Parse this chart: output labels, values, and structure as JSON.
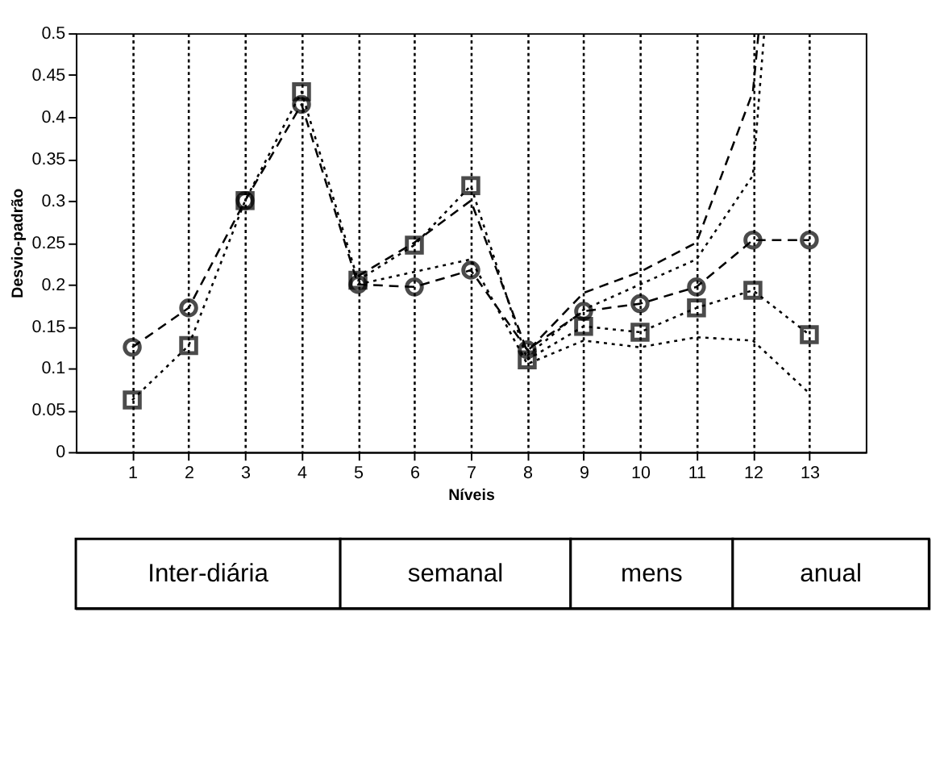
{
  "chart_data": {
    "type": "line",
    "xlabel": "Níveis",
    "ylabel": "Desvio-padrão",
    "xlim": [
      0,
      14
    ],
    "xticks": [
      1,
      2,
      3,
      4,
      5,
      6,
      7,
      8,
      9,
      10,
      11,
      12,
      13
    ],
    "ylim": [
      0,
      0.5
    ],
    "yticks": [
      0,
      0.05,
      0.1,
      0.15,
      0.2,
      0.25,
      0.3,
      0.35,
      0.4,
      0.45,
      0.5
    ],
    "grid": "x",
    "series": [
      {
        "color": "#000000",
        "marker": "circle",
        "line_style": "dashed",
        "x": [
          1,
          2,
          3,
          4,
          5,
          6,
          7,
          8,
          9,
          10,
          11,
          12,
          13
        ],
        "values": [
          0.125,
          0.172,
          0.3,
          0.415,
          0.2,
          0.197,
          0.217,
          0.122,
          0.168,
          0.177,
          0.197,
          0.253,
          0.253
        ]
      },
      {
        "color": "#000000",
        "marker": "square",
        "line_style": "dotted",
        "x": [
          1,
          2,
          3,
          4,
          5,
          6,
          7,
          8,
          9,
          10,
          11,
          12,
          13
        ],
        "values": [
          0.062,
          0.127,
          0.3,
          0.43,
          0.205,
          0.247,
          0.318,
          0.11,
          0.15,
          0.143,
          0.172,
          0.193,
          0.14
        ]
      },
      {
        "color": "#000000",
        "marker": "none",
        "line_style": "dashed",
        "x": [
          5,
          6,
          7,
          8,
          9,
          10,
          11,
          12,
          12.1
        ],
        "values": [
          0.21,
          0.25,
          0.3,
          0.12,
          0.19,
          0.215,
          0.25,
          0.43,
          0.5
        ]
      },
      {
        "color": "#000000",
        "marker": "none",
        "line_style": "dotted",
        "x": [
          8,
          9,
          10,
          11,
          12,
          12.2
        ],
        "values": [
          0.115,
          0.17,
          0.2,
          0.23,
          0.33,
          0.5
        ]
      },
      {
        "color": "#000000",
        "marker": "none",
        "line_style": "dotted",
        "x": [
          5,
          6,
          7,
          8,
          9,
          10,
          11,
          12,
          13
        ],
        "values": [
          0.2,
          0.215,
          0.23,
          0.105,
          0.133,
          0.125,
          0.137,
          0.133,
          0.07
        ]
      }
    ],
    "annotations": [
      "Inter-diária",
      "semanal",
      "mens",
      "anual"
    ]
  }
}
